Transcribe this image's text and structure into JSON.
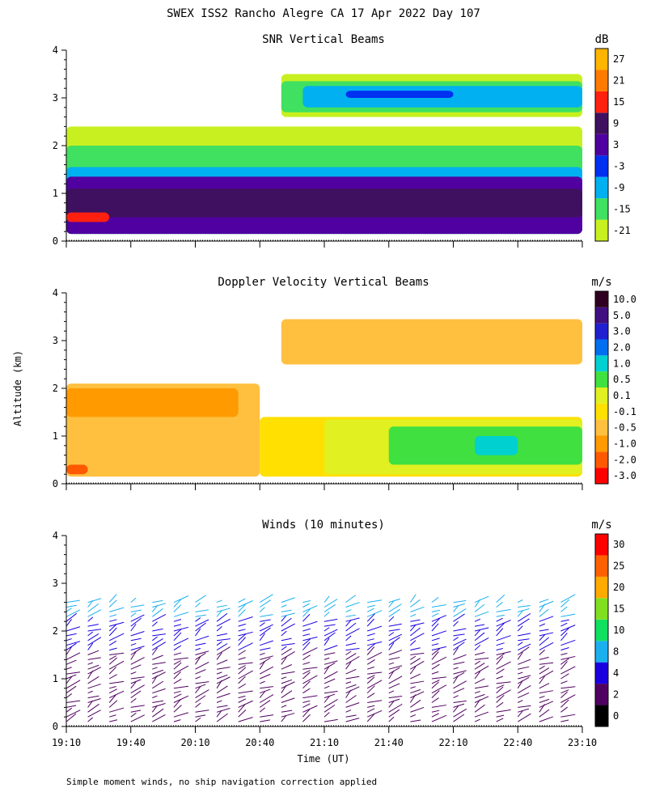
{
  "figure": {
    "title": "SWEX ISS2 Rancho Alegre CA  17 Apr 2022 Day 107",
    "y_axis_label": "Altitude (km)",
    "x_axis_label": "Time (UT)",
    "footnote": "Simple moment winds, no ship navigation correction applied"
  },
  "chart_data": [
    {
      "type": "heatmap",
      "title": "SNR Vertical Beams",
      "ylim": [
        0,
        4
      ],
      "y_ticks": [
        0,
        1,
        2,
        3,
        4
      ],
      "x_ticks": [
        "19:10",
        "19:40",
        "20:10",
        "20:40",
        "21:10",
        "21:40",
        "22:10",
        "22:40",
        "23:10"
      ],
      "show_x_tick_labels": false,
      "colorbar": {
        "unit": "dB",
        "labels": [
          "-21",
          "-15",
          "-9",
          "-3",
          "3",
          "9",
          "15",
          "21",
          "27"
        ],
        "colors": [
          "#c8f020",
          "#40e060",
          "#00b0f0",
          "#0030f0",
          "#5000a0",
          "#401060",
          "#ff2010",
          "#ff7a00",
          "#ffb400"
        ]
      },
      "layers": [
        {
          "label": "-21",
          "color": "#c8f020",
          "start": "19:10",
          "end": "23:10",
          "bottom": 0.15,
          "top": 2.4
        },
        {
          "label": "-15",
          "color": "#40e060",
          "start": "19:10",
          "end": "23:10",
          "bottom": 0.15,
          "top": 2.0
        },
        {
          "label": "-9",
          "color": "#00b0f0",
          "start": "19:10",
          "end": "23:10",
          "bottom": 0.15,
          "top": 1.55
        },
        {
          "label": "3",
          "color": "#5000a0",
          "start": "19:10",
          "end": "23:10",
          "bottom": 0.15,
          "top": 1.35
        },
        {
          "label": "9",
          "color": "#401060",
          "start": "19:10",
          "end": "23:10",
          "bottom": 0.5,
          "top": 1.1
        },
        {
          "label": "-21",
          "color": "#c8f020",
          "start": "20:50",
          "end": "23:10",
          "bottom": 2.6,
          "top": 3.5
        },
        {
          "label": "-15",
          "color": "#40e060",
          "start": "20:50",
          "end": "23:10",
          "bottom": 2.7,
          "top": 3.35
        },
        {
          "label": "-9",
          "color": "#00b0f0",
          "start": "21:00",
          "end": "23:10",
          "bottom": 2.8,
          "top": 3.25
        },
        {
          "label": "-3",
          "color": "#0030f0",
          "start": "21:20",
          "end": "22:10",
          "bottom": 3.0,
          "top": 3.15
        },
        {
          "label": "15",
          "color": "#ff2010",
          "start": "19:10",
          "end": "19:30",
          "bottom": 0.4,
          "top": 0.6
        }
      ]
    },
    {
      "type": "heatmap",
      "title": "Doppler Velocity Vertical Beams",
      "ylim": [
        0,
        4
      ],
      "y_ticks": [
        0,
        1,
        2,
        3,
        4
      ],
      "x_ticks": [
        "19:10",
        "19:40",
        "20:10",
        "20:40",
        "21:10",
        "21:40",
        "22:10",
        "22:40",
        "23:10"
      ],
      "show_x_tick_labels": false,
      "colorbar": {
        "unit": "m/s",
        "labels": [
          "-3.0",
          "-2.0",
          "-1.0",
          "-0.5",
          "-0.1",
          "0.1",
          "0.5",
          "1.0",
          "2.0",
          "3.0",
          "5.0",
          "10.0"
        ],
        "colors": [
          "#ff0000",
          "#ff5a00",
          "#ff9a00",
          "#ffc040",
          "#ffe000",
          "#e0f020",
          "#40e040",
          "#00d0d0",
          "#0070f0",
          "#2020d0",
          "#401080",
          "#300020"
        ]
      },
      "layers": [
        {
          "label": "-0.5",
          "color": "#ffc040",
          "start": "19:10",
          "end": "20:40",
          "bottom": 0.15,
          "top": 2.1
        },
        {
          "label": "-0.1",
          "color": "#ffe000",
          "start": "20:40",
          "end": "23:10",
          "bottom": 0.15,
          "top": 1.4
        },
        {
          "label": "0.1",
          "color": "#e0f020",
          "start": "21:10",
          "end": "23:10",
          "bottom": 0.2,
          "top": 1.35
        },
        {
          "label": "0.5",
          "color": "#40e040",
          "start": "21:40",
          "end": "23:10",
          "bottom": 0.4,
          "top": 1.2
        },
        {
          "label": "1.0",
          "color": "#00d0d0",
          "start": "22:20",
          "end": "22:40",
          "bottom": 0.6,
          "top": 1.0
        },
        {
          "label": "-0.5",
          "color": "#ffc040",
          "start": "20:50",
          "end": "23:10",
          "bottom": 2.5,
          "top": 3.45
        },
        {
          "label": "-1.0",
          "color": "#ff9a00",
          "start": "19:10",
          "end": "20:30",
          "bottom": 1.4,
          "top": 2.0
        },
        {
          "label": "-2.0",
          "color": "#ff5a00",
          "start": "19:10",
          "end": "19:20",
          "bottom": 0.2,
          "top": 0.4
        }
      ]
    },
    {
      "type": "wind-barbs",
      "title": "Winds (10 minutes)",
      "ylim": [
        0,
        4
      ],
      "y_ticks": [
        0,
        1,
        2,
        3,
        4
      ],
      "x_ticks": [
        "19:10",
        "19:40",
        "20:10",
        "20:40",
        "21:10",
        "21:40",
        "22:10",
        "22:40",
        "23:10"
      ],
      "show_x_tick_labels": true,
      "colorbar": {
        "unit": "m/s",
        "labels": [
          "0",
          "2",
          "4",
          "8",
          "10",
          "15",
          "20",
          "25",
          "30"
        ],
        "colors": [
          "#000000",
          "#500060",
          "#1a00e0",
          "#1ab0f0",
          "#10e060",
          "#80e020",
          "#ffaa00",
          "#ff6000",
          "#ff0000"
        ]
      },
      "barb_times": [
        "19:10",
        "19:20",
        "19:30",
        "19:40",
        "19:50",
        "20:00",
        "20:10",
        "20:20",
        "20:30",
        "20:40",
        "20:50",
        "21:00",
        "21:10",
        "21:20",
        "21:30",
        "21:40",
        "21:50",
        "22:00",
        "22:10",
        "22:20",
        "22:30",
        "22:40",
        "22:50",
        "23:00"
      ],
      "barb_altitude_range": [
        0.1,
        2.6
      ],
      "typical_speed_lower": 3,
      "typical_speed_upper": 6
    }
  ]
}
